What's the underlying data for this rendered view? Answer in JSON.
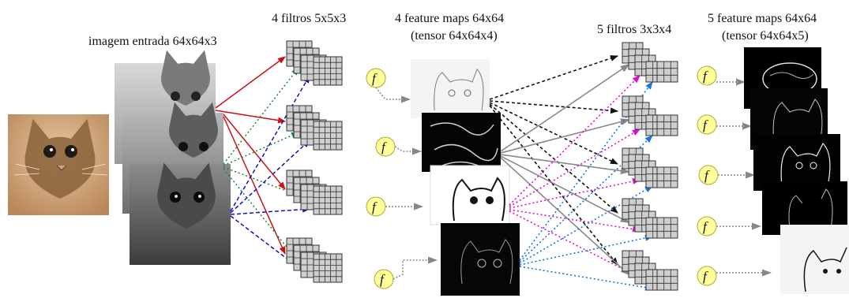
{
  "labels": {
    "input": "imagem entrada 64x64x3",
    "filters1": "4 filtros 5x5x3",
    "fmaps1_line1": "4 feature maps 64x64",
    "fmaps1_line2": "(tensor 64x64x4)",
    "filters2": "5 filtros 3x3x4",
    "fmaps2_line1": "5 feature maps 64x64",
    "fmaps2_line2": "(tensor 64x64x5)"
  },
  "activation_symbol": "f",
  "colors": {
    "red": "#cc1111",
    "green": "#118833",
    "blue": "#1111bb",
    "black": "#111111",
    "gray": "#888888",
    "magenta": "#dd11cc",
    "lightblue": "#1177dd",
    "f_circle_fill": "#ffff99",
    "f_circle_stroke": "#aaaa33"
  },
  "icons": {
    "input_image": "cat-photo",
    "channels": [
      "cat-red-channel",
      "cat-green-channel",
      "cat-blue-channel"
    ],
    "filter": "grid-filter-stack-icon",
    "activation": "function-f-icon",
    "feature_map": "cat-edge-map"
  }
}
